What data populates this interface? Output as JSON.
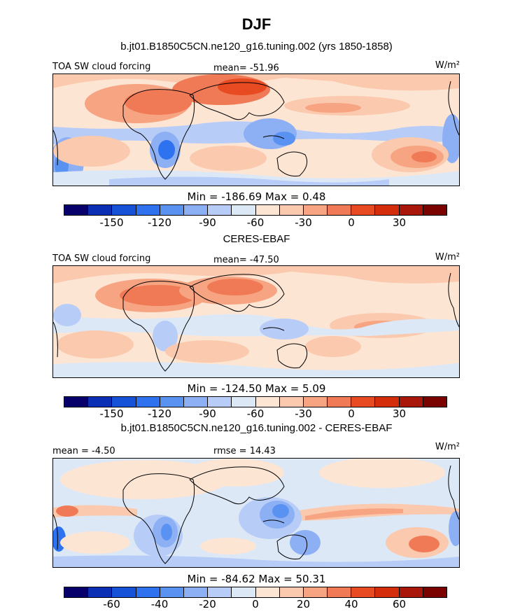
{
  "figure": {
    "title": "DJF"
  },
  "palette": [
    "#08006a",
    "#0a2fb5",
    "#1652d8",
    "#2e72ef",
    "#5a92f2",
    "#8db0f5",
    "#b7cdf7",
    "#dde8f7",
    "#fde5d4",
    "#fbc9ad",
    "#f7a483",
    "#f07a55",
    "#e84a22",
    "#d42d0c",
    "#a81709",
    "#7a0300"
  ],
  "chart_data": [
    {
      "type": "heatmap",
      "title": "b.jt01.B1850C5CN.ne120_g16.tuning.002 (yrs 1850-1858)",
      "left_label": "TOA SW cloud forcing",
      "center_label": "mean= -51.96",
      "units": "W/m²",
      "min_max": "Min = -186.69 Max =    0.48",
      "colorbar_ticks": [
        "-150",
        "-120",
        "-90",
        "-60",
        "-30",
        "0",
        "30"
      ],
      "color_levels": [
        -165,
        -150,
        -135,
        -120,
        -105,
        -90,
        -75,
        -60,
        -45,
        -30,
        -15,
        0,
        15,
        30,
        45
      ]
    },
    {
      "type": "heatmap",
      "title": "CERES-EBAF",
      "left_label": "TOA SW cloud forcing",
      "center_label": "mean= -47.50",
      "units": "W/m²",
      "min_max": "Min = -124.50 Max =    5.09",
      "colorbar_ticks": [
        "-150",
        "-120",
        "-90",
        "-60",
        "-30",
        "0",
        "30"
      ],
      "color_levels": [
        -165,
        -150,
        -135,
        -120,
        -105,
        -90,
        -75,
        -60,
        -45,
        -30,
        -15,
        0,
        15,
        30,
        45
      ]
    },
    {
      "type": "heatmap",
      "title": "b.jt01.B1850C5CN.ne120_g16.tuning.002 - CERES-EBAF",
      "left_label": "mean =  -4.50",
      "center_label": "rmse =  14.43",
      "units": "W/m²",
      "min_max": "Min = -84.62 Max =  50.31",
      "colorbar_ticks": [
        "-60",
        "-40",
        "-20",
        "0",
        "20",
        "40",
        "60"
      ],
      "color_levels": [
        -70,
        -60,
        -50,
        -40,
        -30,
        -20,
        -10,
        0,
        10,
        20,
        30,
        40,
        50,
        60,
        70
      ]
    }
  ]
}
